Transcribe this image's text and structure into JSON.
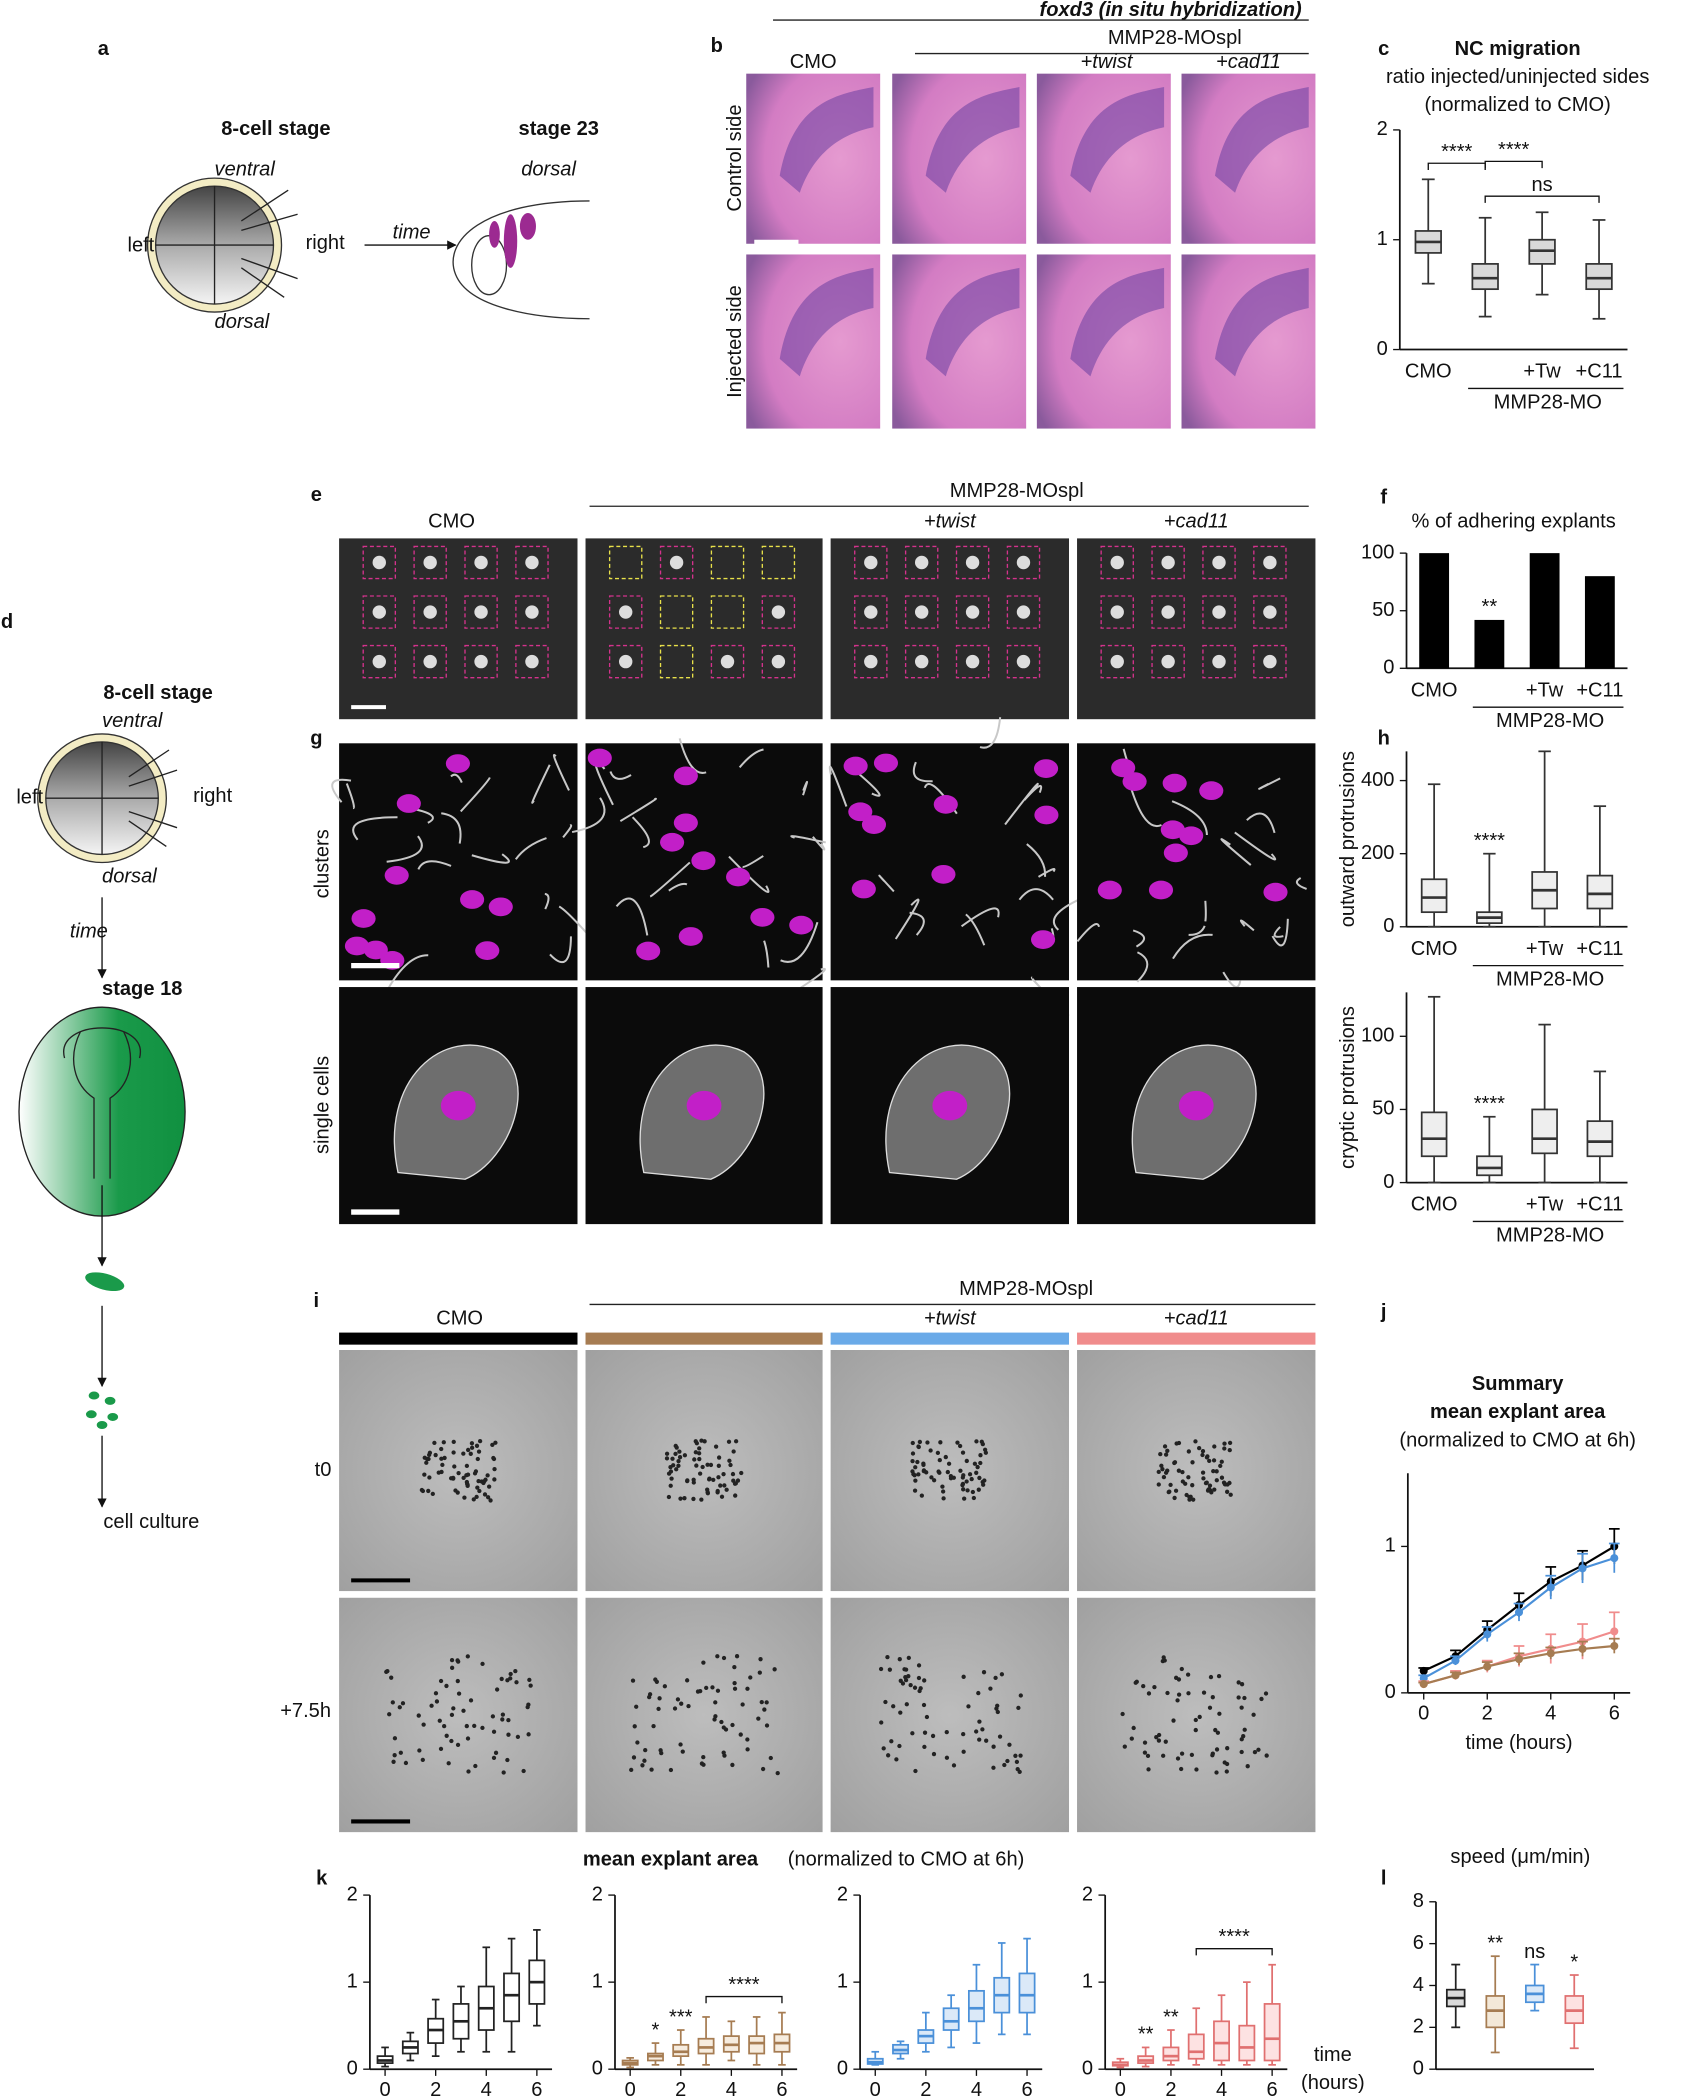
{
  "panel_letters": [
    "a",
    "b",
    "c",
    "d",
    "e",
    "f",
    "g",
    "h",
    "i",
    "j",
    "k",
    "l"
  ],
  "diagram_a": {
    "stage_start": "8-cell stage",
    "ventral": "ventral",
    "left": "left",
    "right": "right",
    "dorsal": "dorsal",
    "time": "time",
    "stage_end": "stage 23",
    "end_dorsal": "dorsal"
  },
  "diagram_d": {
    "stage_start": "8-cell stage",
    "ventral": "ventral",
    "left": "left",
    "right": "right",
    "dorsal": "dorsal",
    "time": "time",
    "stage_end": "stage 18",
    "culture": "cell culture"
  },
  "panel_b": {
    "title": "foxd3 (in situ hybridization)",
    "group": "MMP28-MOspl",
    "columns": [
      "CMO",
      null,
      "+twist",
      "+cad11"
    ],
    "rows": [
      "Control side",
      "Injected side"
    ]
  },
  "panel_e": {
    "group": "MMP28-MOspl",
    "columns": [
      "CMO",
      null,
      "+twist",
      "+cad11"
    ]
  },
  "panel_g": {
    "rows": [
      "clusters",
      "single cells"
    ]
  },
  "panel_i": {
    "group": "MMP28-MOspl",
    "columns": [
      "CMO",
      null,
      "+twist",
      "+cad11"
    ],
    "rows": [
      "t0",
      "+7.5h"
    ]
  },
  "panel_k": {
    "title": "mean explant area",
    "subtitle": "(normalized to CMO at 6h)",
    "xlabel": [
      "time",
      "(hours)"
    ]
  },
  "chart_data": [
    {
      "type": "box",
      "title": "NC migration",
      "subtitle": [
        "ratio injected/uninjected sides",
        "(normalized to CMO)"
      ],
      "categories": [
        "CMO",
        null,
        "+Tw",
        "+C11"
      ],
      "group_label": "MMP28-MO",
      "ylim": [
        0,
        2
      ],
      "yticks": [
        0,
        1,
        2
      ],
      "color": "#333333",
      "fill": "#d9d9d9",
      "min": [
        0.6,
        0.3,
        0.5,
        0.28
      ],
      "q1": [
        0.88,
        0.55,
        0.78,
        0.55
      ],
      "median": [
        0.98,
        0.65,
        0.9,
        0.65
      ],
      "q3": [
        1.08,
        0.78,
        1.0,
        0.78
      ],
      "max": [
        1.55,
        1.2,
        1.25,
        1.18
      ],
      "comparisons": [
        {
          "text": "****",
          "between": [
            0,
            1
          ]
        },
        {
          "text": "ns",
          "between": [
            1,
            3
          ]
        },
        {
          "text": "****",
          "between": [
            1,
            2
          ]
        }
      ]
    },
    {
      "type": "bar",
      "title": "% of adhering explants",
      "categories": [
        "CMO",
        null,
        "+Tw",
        "+C11"
      ],
      "group_label": "MMP28-MO",
      "ylim": [
        0,
        100
      ],
      "yticks": [
        0,
        50,
        100
      ],
      "color": "#000000",
      "values": [
        100,
        42,
        100,
        80
      ],
      "marks": [
        null,
        "**",
        null,
        null
      ]
    },
    {
      "type": "box",
      "ylabel": "outward protrusions",
      "categories": [
        "CMO",
        null,
        "+Tw",
        "+C11"
      ],
      "group_label": "MMP28-MO",
      "ylim": [
        0,
        480
      ],
      "yticks": [
        0,
        200,
        400
      ],
      "color": "#333333",
      "fill": "#eeeeee",
      "min": [
        0,
        0,
        0,
        0
      ],
      "q1": [
        40,
        10,
        50,
        50
      ],
      "median": [
        80,
        25,
        100,
        90
      ],
      "q3": [
        130,
        40,
        150,
        140
      ],
      "max": [
        390,
        200,
        480,
        330
      ],
      "marks": [
        null,
        "****",
        null,
        null
      ]
    },
    {
      "type": "box",
      "ylabel": "cryptic protrusions",
      "categories": [
        "CMO",
        null,
        "+Tw",
        "+C11"
      ],
      "group_label": "MMP28-MO",
      "ylim": [
        0,
        130
      ],
      "yticks": [
        0,
        50,
        100
      ],
      "color": "#333333",
      "fill": "#eeeeee",
      "min": [
        0,
        0,
        0,
        0
      ],
      "q1": [
        18,
        5,
        20,
        18
      ],
      "median": [
        30,
        10,
        30,
        28
      ],
      "q3": [
        48,
        18,
        50,
        42
      ],
      "max": [
        127,
        45,
        108,
        76
      ],
      "marks": [
        null,
        "****",
        null,
        null
      ]
    },
    {
      "type": "line",
      "title": "Summary",
      "subtitle": [
        "mean explant area",
        "(normalized to CMO at 6h)"
      ],
      "xlabel": "time (hours)",
      "x": [
        0,
        1,
        2,
        3,
        4,
        5,
        6
      ],
      "xlim": [
        -0.5,
        6.5
      ],
      "xticks": [
        0,
        2,
        4,
        6
      ],
      "ylim": [
        0,
        1.5
      ],
      "yticks": [
        0,
        1
      ],
      "series": [
        {
          "color": "#000000",
          "values": [
            0.15,
            0.25,
            0.43,
            0.6,
            0.76,
            0.87,
            1.0
          ],
          "errors": [
            0.02,
            0.04,
            0.06,
            0.08,
            0.1,
            0.1,
            0.12
          ]
        },
        {
          "color": "#4a90d9",
          "values": [
            0.1,
            0.22,
            0.4,
            0.55,
            0.72,
            0.85,
            0.92
          ],
          "errors": [
            0.02,
            0.03,
            0.05,
            0.06,
            0.08,
            0.1,
            0.1
          ]
        },
        {
          "color": "#f08c8c",
          "values": [
            0.06,
            0.12,
            0.18,
            0.25,
            0.3,
            0.35,
            0.42
          ],
          "errors": [
            0.02,
            0.03,
            0.04,
            0.07,
            0.1,
            0.12,
            0.13
          ]
        },
        {
          "color": "#a67c52",
          "values": [
            0.06,
            0.12,
            0.18,
            0.23,
            0.27,
            0.3,
            0.32
          ],
          "errors": [
            0.01,
            0.02,
            0.03,
            0.04,
            0.04,
            0.05,
            0.05
          ]
        }
      ]
    },
    {
      "type": "box",
      "x": [
        0,
        1,
        2,
        3,
        4,
        5,
        6
      ],
      "xlim": [
        -0.6,
        6.6
      ],
      "xticks": [
        0,
        2,
        4,
        6
      ],
      "ylim": [
        0,
        2
      ],
      "yticks": [
        0,
        1,
        2
      ],
      "color": "#222222",
      "fill": "#ffffff",
      "min": [
        0.03,
        0.1,
        0.15,
        0.2,
        0.2,
        0.2,
        0.5
      ],
      "q1": [
        0.07,
        0.18,
        0.3,
        0.35,
        0.45,
        0.55,
        0.75
      ],
      "median": [
        0.1,
        0.25,
        0.45,
        0.55,
        0.7,
        0.85,
        1.0
      ],
      "q3": [
        0.15,
        0.32,
        0.58,
        0.75,
        0.95,
        1.1,
        1.25
      ],
      "max": [
        0.25,
        0.42,
        0.8,
        0.95,
        1.4,
        1.5,
        1.6
      ]
    },
    {
      "type": "box",
      "x": [
        0,
        1,
        2,
        3,
        4,
        5,
        6
      ],
      "xlim": [
        -0.6,
        6.6
      ],
      "xticks": [
        0,
        2,
        4,
        6
      ],
      "ylim": [
        0,
        2
      ],
      "yticks": [
        0,
        1,
        2
      ],
      "color": "#a67c52",
      "fill": "#f6ecdf",
      "min": [
        0.02,
        0.05,
        0.05,
        0.05,
        0.1,
        0.05,
        0.05
      ],
      "q1": [
        0.05,
        0.1,
        0.15,
        0.18,
        0.2,
        0.18,
        0.2
      ],
      "median": [
        0.07,
        0.15,
        0.2,
        0.25,
        0.28,
        0.3,
        0.3
      ],
      "q3": [
        0.1,
        0.18,
        0.28,
        0.35,
        0.38,
        0.38,
        0.4
      ],
      "max": [
        0.13,
        0.3,
        0.45,
        0.6,
        0.55,
        0.6,
        0.65
      ],
      "marks": [
        null,
        "*",
        "***",
        null,
        null,
        null,
        null
      ],
      "comparisons": [
        {
          "text": "****",
          "between": [
            3,
            6
          ]
        }
      ]
    },
    {
      "type": "box",
      "x": [
        0,
        1,
        2,
        3,
        4,
        5,
        6
      ],
      "xlim": [
        -0.6,
        6.6
      ],
      "xticks": [
        0,
        2,
        4,
        6
      ],
      "ylim": [
        0,
        2
      ],
      "yticks": [
        0,
        1,
        2
      ],
      "color": "#4a90d9",
      "fill": "#dbe9f8",
      "min": [
        0.05,
        0.12,
        0.2,
        0.25,
        0.3,
        0.4,
        0.4
      ],
      "q1": [
        0.06,
        0.18,
        0.3,
        0.45,
        0.55,
        0.65,
        0.65
      ],
      "median": [
        0.08,
        0.22,
        0.38,
        0.55,
        0.7,
        0.85,
        0.85
      ],
      "q3": [
        0.12,
        0.28,
        0.45,
        0.7,
        0.9,
        1.05,
        1.1
      ],
      "max": [
        0.2,
        0.32,
        0.65,
        0.85,
        1.2,
        1.45,
        1.5
      ]
    },
    {
      "type": "box",
      "x": [
        0,
        1,
        2,
        3,
        4,
        5,
        6
      ],
      "xlim": [
        -0.6,
        6.6
      ],
      "xticks": [
        0,
        2,
        4,
        6
      ],
      "ylim": [
        0,
        2
      ],
      "yticks": [
        0,
        1,
        2
      ],
      "color": "#e07070",
      "fill": "#fde2e2",
      "min": [
        0.02,
        0.03,
        0.05,
        0.05,
        0.05,
        0.05,
        0.05
      ],
      "q1": [
        0.04,
        0.07,
        0.1,
        0.12,
        0.1,
        0.1,
        0.1
      ],
      "median": [
        0.05,
        0.1,
        0.15,
        0.2,
        0.3,
        0.25,
        0.35
      ],
      "q3": [
        0.08,
        0.15,
        0.25,
        0.4,
        0.55,
        0.5,
        0.75
      ],
      "max": [
        0.12,
        0.25,
        0.45,
        0.7,
        0.85,
        1.0,
        1.2
      ],
      "marks": [
        null,
        "**",
        "**",
        null,
        null,
        null,
        null
      ],
      "comparisons": [
        {
          "text": "****",
          "between": [
            3,
            6
          ]
        }
      ]
    },
    {
      "type": "box",
      "title": "speed (μm/min)",
      "ylim": [
        0,
        8
      ],
      "yticks": [
        0,
        2,
        4,
        6,
        8
      ],
      "colors": [
        "#222222",
        "#a67c52",
        "#4a90d9",
        "#e07070"
      ],
      "fills": [
        "#d9d9d9",
        "#f3e8d8",
        "#dbe9f8",
        "#fde2e2"
      ],
      "min": [
        2.0,
        0.8,
        2.8,
        1.0
      ],
      "q1": [
        3.0,
        2.0,
        3.2,
        2.2
      ],
      "median": [
        3.4,
        2.8,
        3.6,
        2.8
      ],
      "q3": [
        3.8,
        3.5,
        4.0,
        3.5
      ],
      "max": [
        5.0,
        5.4,
        5.0,
        4.5
      ],
      "marks": [
        null,
        "**",
        "ns",
        "*"
      ]
    }
  ]
}
